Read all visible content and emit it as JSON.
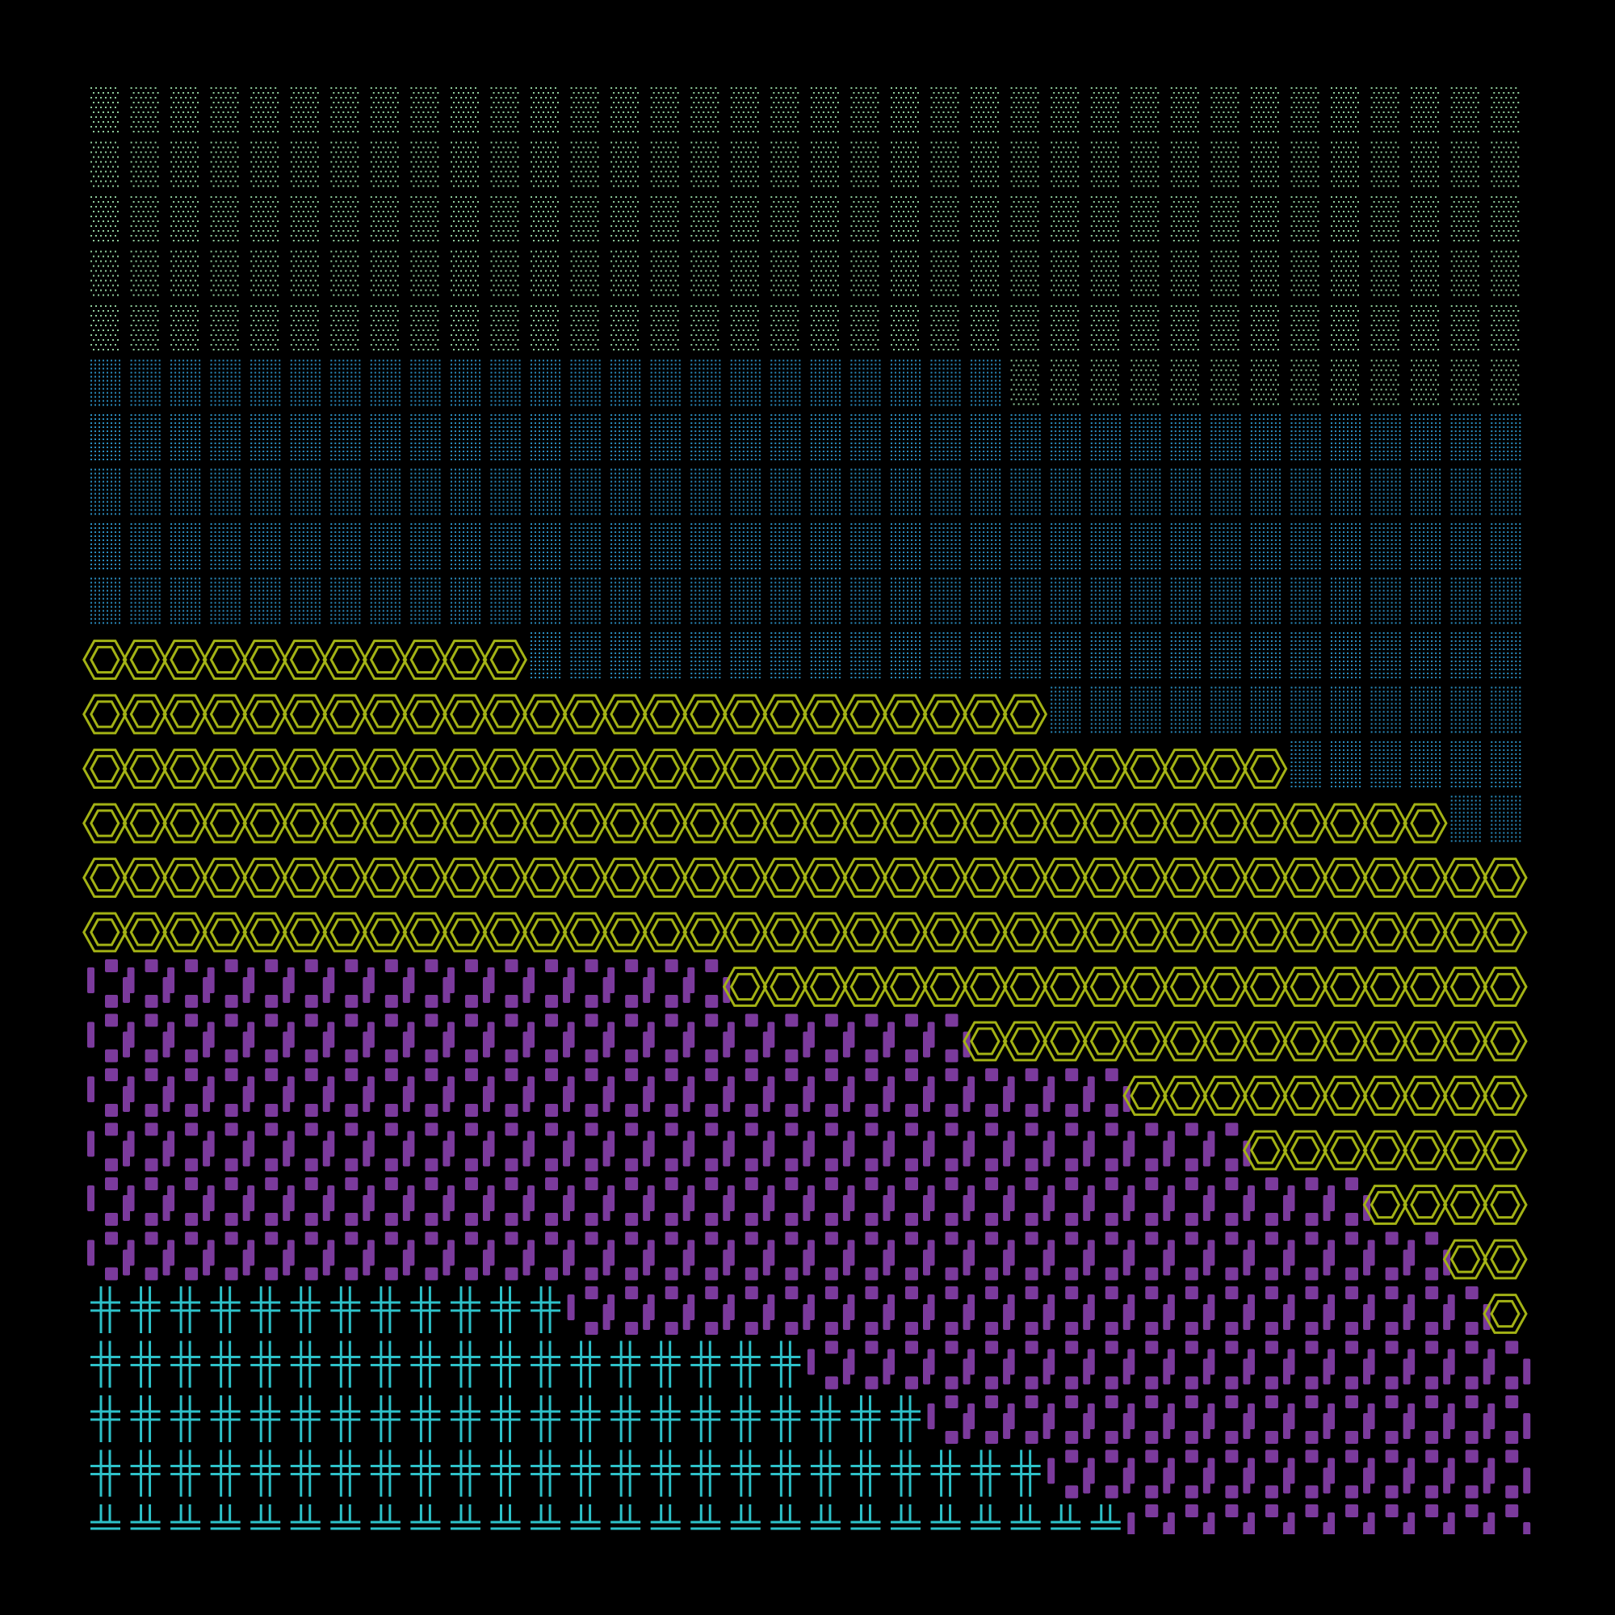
{
  "colors": {
    "background": "#000000",
    "mint_dots": "#8fcb9b",
    "blue_dots": "#2a8cbe",
    "yellow_hexagons": "#a3b215",
    "purple_blocks": "#7b3a9c",
    "cyan_crosses": "#2ec1c9"
  },
  "grid": {
    "columns": 36,
    "rows": 27
  },
  "regions": [
    {
      "name": "mint-dot-stipple-region",
      "pattern": "dot-stipple-fine",
      "color_key": "mint_dots",
      "row_range": [
        0,
        6
      ],
      "row_ends": [
        36,
        36,
        36,
        36,
        36,
        23,
        18
      ]
    },
    {
      "name": "blue-dot-stipple-region",
      "pattern": "dot-stipple-dense",
      "color_key": "blue_dots",
      "row_range": [
        5,
        14
      ]
    },
    {
      "name": "yellow-hexagon-region",
      "pattern": "double-hexagon",
      "color_key": "yellow_hexagons",
      "row_range": [
        10,
        22
      ],
      "row_starts": [
        0,
        0,
        0,
        0,
        0,
        0,
        16,
        22,
        26,
        29,
        32,
        34,
        35
      ],
      "row_ends": [
        11,
        24,
        30,
        34,
        36,
        36,
        36,
        36,
        36,
        36,
        36,
        36,
        36
      ]
    },
    {
      "name": "purple-block-region",
      "pattern": "broken-blocks",
      "color_key": "purple_blocks",
      "row_range": [
        16,
        26
      ],
      "row_ends": [
        16,
        22,
        26,
        29,
        32,
        34,
        35,
        36,
        36,
        36,
        36
      ],
      "row_starts_lower": [
        12,
        18,
        21,
        24,
        26
      ]
    },
    {
      "name": "cyan-cross-region",
      "pattern": "double-cross",
      "color_key": "cyan_crosses",
      "row_range": [
        22,
        26
      ],
      "row_ends": [
        12,
        18,
        21,
        24,
        26
      ]
    }
  ]
}
